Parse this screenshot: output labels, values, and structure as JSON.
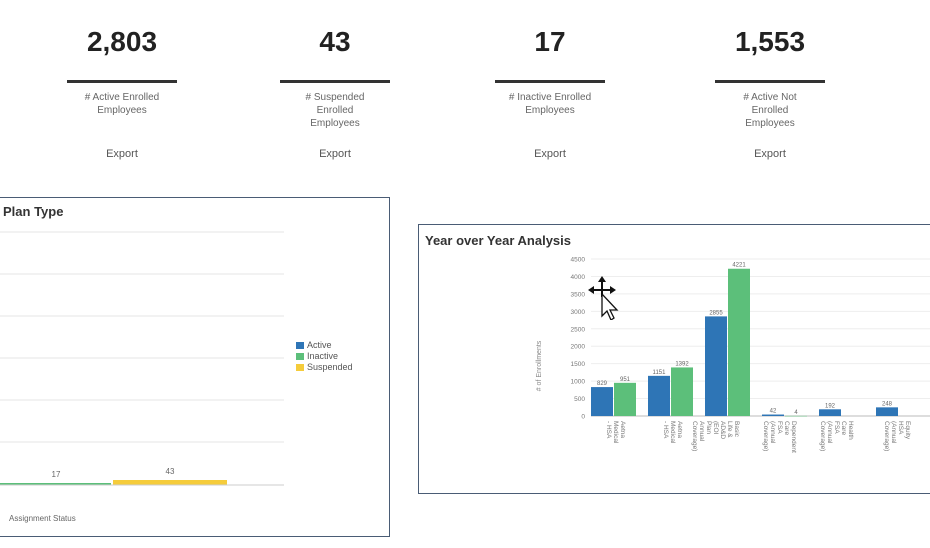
{
  "kpis": [
    {
      "value": "2,803",
      "label": "# Active Enrolled Employees",
      "export_label": "Export"
    },
    {
      "value": "43",
      "label": "# Suspended Enrolled Employees",
      "export_label": "Export"
    },
    {
      "value": "17",
      "label": "# Inactive Enrolled Employees",
      "export_label": "Export"
    },
    {
      "value": "1,553",
      "label": "# Active Not Enrolled Employees",
      "export_label": "Export"
    }
  ],
  "left_panel": {
    "title": "Plan Type",
    "legend": [
      "Active",
      "Inactive",
      "Suspended"
    ],
    "value_labels": [
      "17",
      "43"
    ],
    "xlabel": "Assignment Status"
  },
  "colors": {
    "active": "#2e75b6",
    "inactive": "#5cbf7a",
    "suspended": "#f5cc3b"
  },
  "chart_data": {
    "type": "bar",
    "title": "Year over Year Analysis",
    "ylabel": "# of Enrollments",
    "ylim": [
      0,
      4500
    ],
    "yticks": [
      "4500",
      "4000",
      "3500",
      "3000",
      "2500",
      "2000",
      "1500",
      "1000",
      "500",
      "0"
    ],
    "categories": [
      "Aetna Medical - HSA",
      "Aetna Medical - HSA",
      "Basic Life & AD&D (EOI Plan Annual Coverage)",
      "Dependent Care FSA (Annual Coverage)",
      "Health Care FSA (Annual Coverage)",
      "Equity HSA (Annual Coverage)"
    ],
    "series": [
      {
        "key": "active",
        "values": [
          829,
          1151,
          2855,
          42,
          192,
          248
        ]
      },
      {
        "key": "inactive",
        "values": [
          951,
          1392,
          4221,
          4,
          null,
          null
        ]
      }
    ],
    "data_labels": [
      "829",
      "951",
      "1151",
      "1392",
      "2855",
      "4221",
      "42",
      "4",
      "192",
      "248"
    ]
  },
  "cursor": "move-cursor"
}
